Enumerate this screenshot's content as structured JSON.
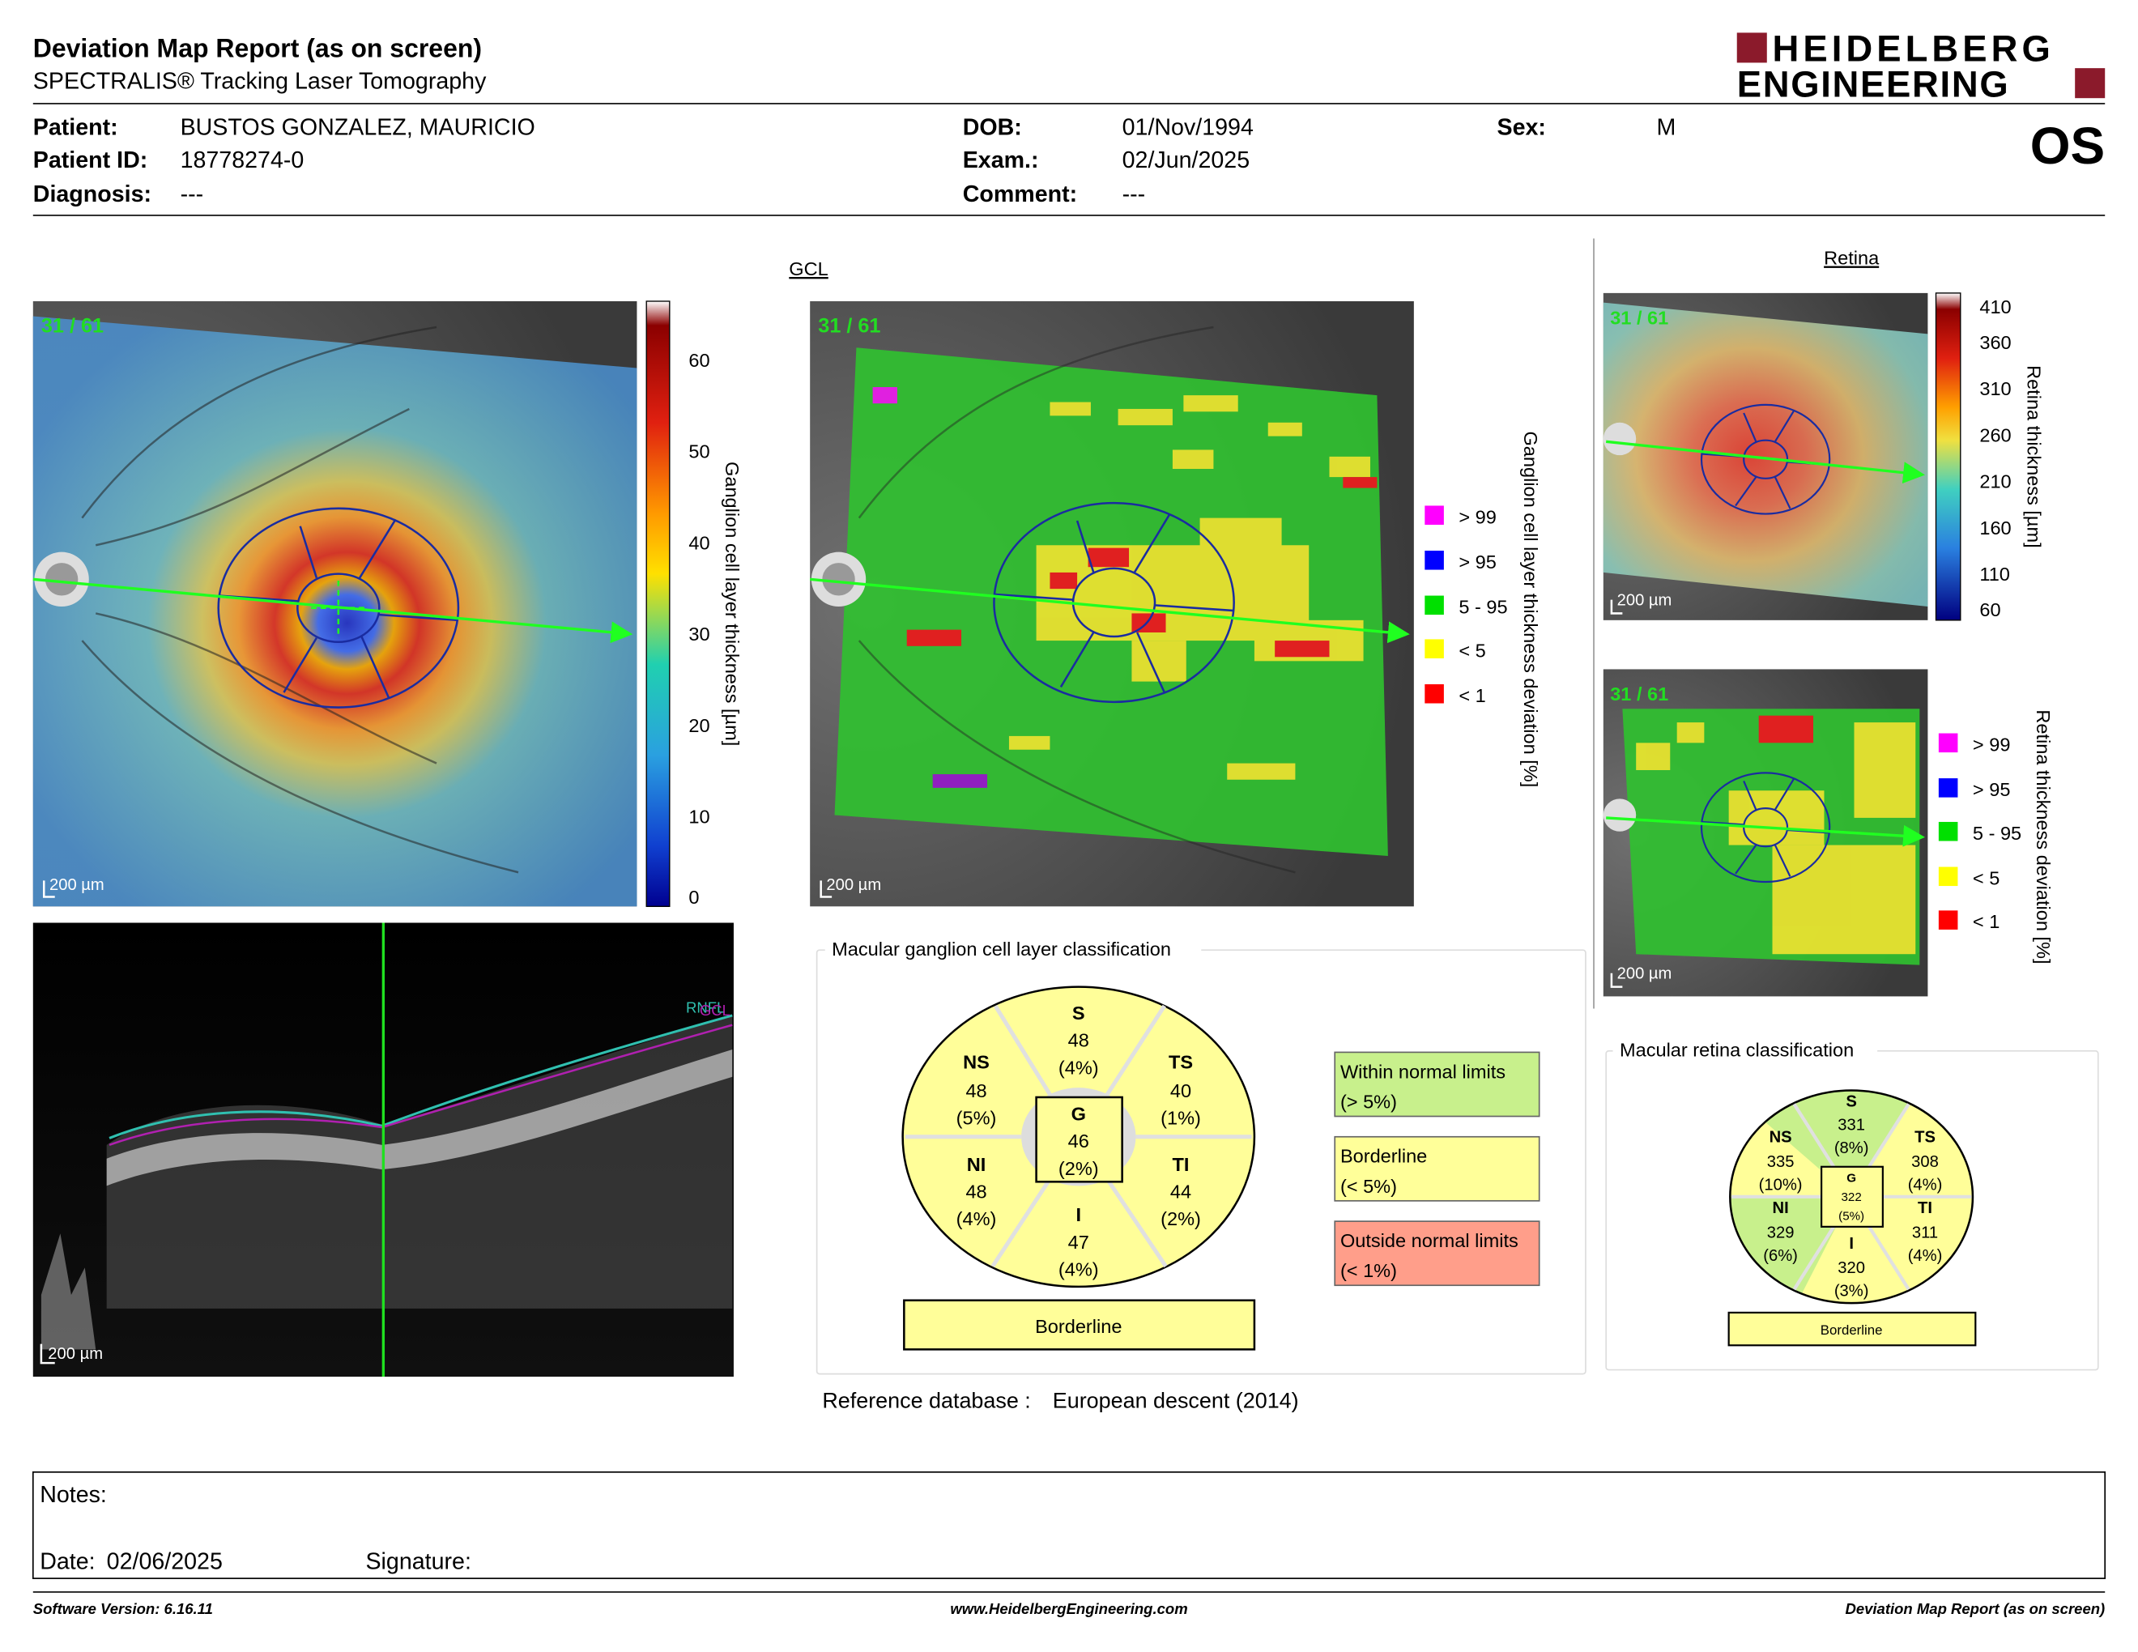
{
  "header": {
    "title": "Deviation Map Report (as on screen)",
    "subtitle": "SPECTRALIS® Tracking Laser Tomography",
    "brand_line1": "HEIDELBERG",
    "brand_line2": "ENGINEERING",
    "eye": "OS"
  },
  "patient": {
    "name_label": "Patient:",
    "name": "BUSTOS GONZALEZ, MAURICIO",
    "id_label": "Patient ID:",
    "id": "18778274-0",
    "diagnosis_label": "Diagnosis:",
    "diagnosis": "---",
    "dob_label": "DOB:",
    "dob": "01/Nov/1994",
    "exam_label": "Exam.:",
    "exam": "02/Jun/2025",
    "comment_label": "Comment:",
    "comment": "---",
    "sex_label": "Sex:",
    "sex": "M"
  },
  "gcl": {
    "section_title": "GCL",
    "slice_label": "31 / 61",
    "scale_label": "200 µm",
    "thickness_ticks": [
      "60",
      "50",
      "40",
      "30",
      "20",
      "10",
      "0"
    ],
    "thickness_axis_label": "Ganglion cell layer thickness [µm]",
    "deviation_axis_label": "Ganglion cell layer thickness deviation [%]",
    "legend": [
      {
        "label": "> 99",
        "color": "#ff00ff"
      },
      {
        "label": "> 95",
        "color": "#0000ff"
      },
      {
        "label": "5 - 95",
        "color": "#00e000"
      },
      {
        "label": "< 5",
        "color": "#ffff00"
      },
      {
        "label": "< 1",
        "color": "#ff0000"
      }
    ]
  },
  "bscan": {
    "scale_label": "200 µm",
    "layer_label1": "RNFL",
    "layer_label2": "GCL"
  },
  "retina": {
    "section_title": "Retina",
    "slice_label": "31 / 61",
    "scale_label": "200 µm",
    "thickness_ticks": [
      "410",
      "360",
      "310",
      "260",
      "210",
      "160",
      "110",
      "60"
    ],
    "thickness_axis_label": "Retina thickness [µm]",
    "deviation_axis_label": "Retina thickness deviation [%]"
  },
  "gcl_classification": {
    "title": "Macular ganglion cell layer classification",
    "sectors": {
      "S": {
        "label": "S",
        "value": "48",
        "pct": "(4%)"
      },
      "NS": {
        "label": "NS",
        "value": "48",
        "pct": "(5%)"
      },
      "TS": {
        "label": "TS",
        "value": "40",
        "pct": "(1%)"
      },
      "NI": {
        "label": "NI",
        "value": "48",
        "pct": "(4%)"
      },
      "TI": {
        "label": "TI",
        "value": "44",
        "pct": "(2%)"
      },
      "I": {
        "label": "I",
        "value": "47",
        "pct": "(4%)"
      },
      "G": {
        "label": "G",
        "value": "46",
        "pct": "(2%)"
      }
    },
    "result": "Borderline",
    "key": [
      {
        "line1": "Within normal limits",
        "line2": "(> 5%)",
        "color": "#c8f08c"
      },
      {
        "line1": "Borderline",
        "line2": "(< 5%)",
        "color": "#ffff99"
      },
      {
        "line1": "Outside normal limits",
        "line2": "(< 1%)",
        "color": "#ff9e8a"
      }
    ],
    "reference_label": "Reference database :",
    "reference_value": "European descent (2014)"
  },
  "retina_classification": {
    "title": "Macular retina classification",
    "sectors": {
      "S": {
        "label": "S",
        "value": "331",
        "pct": "(8%)"
      },
      "NS": {
        "label": "NS",
        "value": "335",
        "pct": "(10%)"
      },
      "TS": {
        "label": "TS",
        "value": "308",
        "pct": "(4%)"
      },
      "NI": {
        "label": "NI",
        "value": "329",
        "pct": "(6%)"
      },
      "TI": {
        "label": "TI",
        "value": "311",
        "pct": "(4%)"
      },
      "I": {
        "label": "I",
        "value": "320",
        "pct": "(3%)"
      },
      "G": {
        "label": "G",
        "value": "322",
        "pct": "(5%)"
      }
    },
    "result": "Borderline"
  },
  "notes": {
    "notes_label": "Notes:",
    "date_label": "Date:",
    "date": "02/06/2025",
    "signature_label": "Signature:"
  },
  "footer": {
    "software": "Software Version: 6.16.11",
    "website": "www.HeidelbergEngineering.com",
    "report": "Deviation Map Report (as on screen)"
  }
}
